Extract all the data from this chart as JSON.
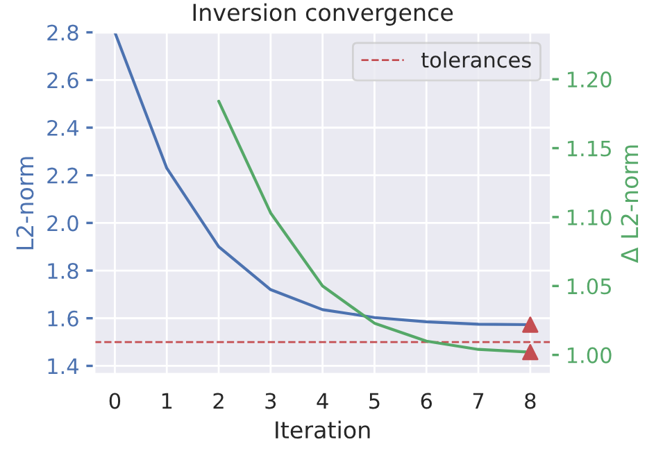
{
  "chart_data": {
    "type": "line",
    "title": "Inversion convergence",
    "xlabel": "Iteration",
    "ylabel": "L2-norm",
    "y2label": "Δ L2-norm",
    "x": [
      0,
      1,
      2,
      3,
      4,
      5,
      6,
      7,
      8
    ],
    "series": [
      {
        "color": "#4c72b0",
        "values": [
          2.8,
          2.23,
          1.9,
          1.72,
          1.636,
          1.603,
          1.585,
          1.575,
          1.573
        ]
      },
      {
        "color": "#55a868",
        "axis": "y2",
        "values": [
          null,
          null,
          1.184,
          1.103,
          1.05,
          1.023,
          1.01,
          1.004,
          1.002
        ]
      },
      {
        "type": "scatter",
        "color": "#c44e52",
        "marker": "triangle",
        "x": [
          8
        ],
        "values": [
          1.573
        ]
      },
      {
        "type": "scatter",
        "color": "#c44e52",
        "marker": "triangle",
        "axis": "y2",
        "x": [
          8
        ],
        "values": [
          1.002
        ]
      }
    ],
    "ref_lines": [
      {
        "axis": "y",
        "value": 1.5,
        "label": "tolerances",
        "color": "#c44e52",
        "line_style": "dashed"
      }
    ],
    "xlim": [
      -0.4,
      8.4
    ],
    "xticks": [
      0,
      1,
      2,
      3,
      4,
      5,
      6,
      7,
      8
    ],
    "ylim": [
      1.365,
      2.8
    ],
    "yticks": [
      1.4,
      1.6,
      1.8,
      {
        "value": 2,
        "label": "2.0"
      },
      2.2,
      2.4,
      2.6,
      2.8
    ],
    "y2lim": [
      0.986,
      1.234
    ],
    "y2ticks": [
      {
        "value": 1,
        "label": "1.00"
      },
      1.05,
      {
        "value": 1.1,
        "label": "1.10"
      },
      1.15,
      {
        "value": 1.2,
        "label": "1.20"
      }
    ],
    "grid": true,
    "legend": "top right"
  }
}
